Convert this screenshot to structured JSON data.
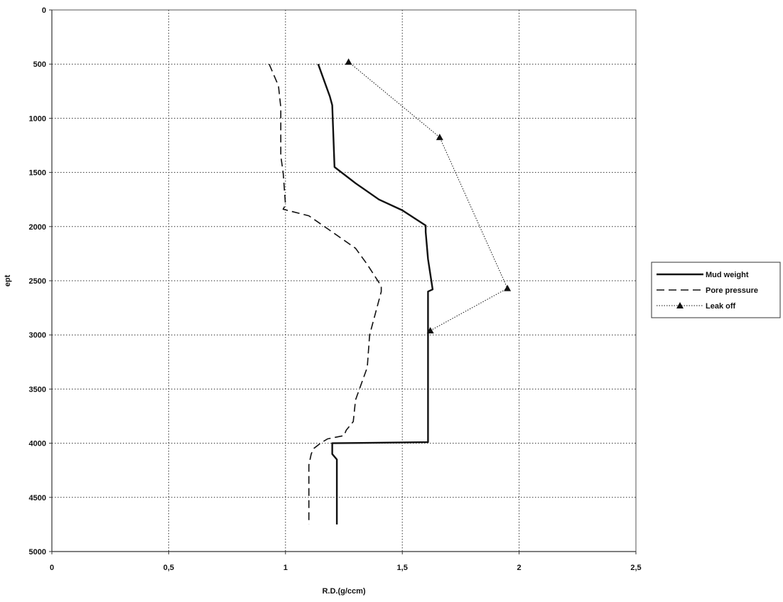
{
  "chart_data": {
    "type": "line",
    "title": "",
    "xlabel": "R.D.(g/ccm)",
    "ylabel": "ept",
    "xlim": [
      0,
      2.5
    ],
    "ylim": [
      0,
      5000
    ],
    "y_inverted": true,
    "x_ticks": [
      0,
      0.5,
      1,
      1.5,
      2,
      2.5
    ],
    "x_tick_labels": [
      "0",
      "0,5",
      "1",
      "1,5",
      "2",
      "2,5"
    ],
    "y_ticks": [
      0,
      500,
      1000,
      1500,
      2000,
      2500,
      3000,
      3500,
      4000,
      4500,
      5000
    ],
    "y_tick_labels": [
      "0",
      "500",
      "1000",
      "1500",
      "2000",
      "2500",
      "3000",
      "3500",
      "4000",
      "4500",
      "5000"
    ],
    "grid": true,
    "legend_position": "right",
    "series": [
      {
        "name": "Mud weight",
        "style": "solid",
        "color": "#111111",
        "points": [
          [
            1.14,
            500
          ],
          [
            1.19,
            800
          ],
          [
            1.2,
            880
          ],
          [
            1.21,
            1450
          ],
          [
            1.3,
            1600
          ],
          [
            1.4,
            1750
          ],
          [
            1.5,
            1850
          ],
          [
            1.6,
            1990
          ],
          [
            1.6,
            2050
          ],
          [
            1.61,
            2300
          ],
          [
            1.63,
            2580
          ],
          [
            1.61,
            2600
          ],
          [
            1.61,
            3990
          ],
          [
            1.2,
            4000
          ],
          [
            1.2,
            4100
          ],
          [
            1.22,
            4150
          ],
          [
            1.22,
            4750
          ]
        ]
      },
      {
        "name": "Pore pressure",
        "style": "dashed",
        "color": "#111111",
        "points": [
          [
            0.93,
            500
          ],
          [
            0.97,
            700
          ],
          [
            0.98,
            900
          ],
          [
            0.98,
            1350
          ],
          [
            0.99,
            1500
          ],
          [
            1.0,
            1800
          ],
          [
            0.99,
            1840
          ],
          [
            1.1,
            1900
          ],
          [
            1.2,
            2050
          ],
          [
            1.3,
            2200
          ],
          [
            1.35,
            2350
          ],
          [
            1.41,
            2550
          ],
          [
            1.41,
            2600
          ],
          [
            1.36,
            3000
          ],
          [
            1.35,
            3300
          ],
          [
            1.3,
            3600
          ],
          [
            1.29,
            3800
          ],
          [
            1.26,
            3880
          ],
          [
            1.25,
            3930
          ],
          [
            1.18,
            3960
          ],
          [
            1.15,
            4000
          ],
          [
            1.12,
            4050
          ],
          [
            1.11,
            4100
          ],
          [
            1.1,
            4200
          ],
          [
            1.1,
            4750
          ]
        ]
      },
      {
        "name": "Leak off",
        "style": "dotted",
        "color": "#111111",
        "marker": "triangle",
        "points": [
          [
            1.27,
            480
          ],
          [
            1.66,
            1175
          ],
          [
            1.95,
            2570
          ],
          [
            1.62,
            2960
          ]
        ]
      }
    ]
  }
}
